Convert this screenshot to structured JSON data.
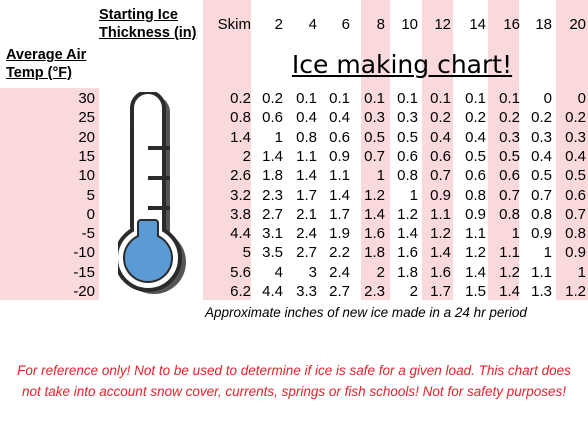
{
  "header": {
    "thickness_label": "Starting Ice Thickness (in)",
    "air_temp_label": "Average Air Temp (°F)"
  },
  "columns": [
    "Skim",
    "2",
    "4",
    "6",
    "8",
    "10",
    "12",
    "14",
    "16",
    "18",
    "20"
  ],
  "title": "Ice making chart!",
  "rows": [
    {
      "temp": "30",
      "values": [
        "0.2",
        "0.2",
        "0.1",
        "0.1",
        "0.1",
        "0.1",
        "0.1",
        "0.1",
        "0.1",
        "0",
        "0"
      ]
    },
    {
      "temp": "25",
      "values": [
        "0.8",
        "0.6",
        "0.4",
        "0.4",
        "0.3",
        "0.3",
        "0.2",
        "0.2",
        "0.2",
        "0.2",
        "0.2"
      ]
    },
    {
      "temp": "20",
      "values": [
        "1.4",
        "1",
        "0.8",
        "0.6",
        "0.5",
        "0.5",
        "0.4",
        "0.4",
        "0.3",
        "0.3",
        "0.3"
      ]
    },
    {
      "temp": "15",
      "values": [
        "2",
        "1.4",
        "1.1",
        "0.9",
        "0.7",
        "0.6",
        "0.6",
        "0.5",
        "0.5",
        "0.4",
        "0.4"
      ]
    },
    {
      "temp": "10",
      "values": [
        "2.6",
        "1.8",
        "1.4",
        "1.1",
        "1",
        "0.8",
        "0.7",
        "0.6",
        "0.6",
        "0.5",
        "0.5"
      ]
    },
    {
      "temp": "5",
      "values": [
        "3.2",
        "2.3",
        "1.7",
        "1.4",
        "1.2",
        "1",
        "0.9",
        "0.8",
        "0.7",
        "0.7",
        "0.6"
      ]
    },
    {
      "temp": "0",
      "values": [
        "3.8",
        "2.7",
        "2.1",
        "1.7",
        "1.4",
        "1.2",
        "1.1",
        "0.9",
        "0.8",
        "0.8",
        "0.7"
      ]
    },
    {
      "temp": "-5",
      "values": [
        "4.4",
        "3.1",
        "2.4",
        "1.9",
        "1.6",
        "1.4",
        "1.2",
        "1.1",
        "1",
        "0.9",
        "0.8"
      ]
    },
    {
      "temp": "-10",
      "values": [
        "5",
        "3.5",
        "2.7",
        "2.2",
        "1.8",
        "1.6",
        "1.4",
        "1.2",
        "1.1",
        "1",
        "0.9"
      ]
    },
    {
      "temp": "-15",
      "values": [
        "5.6",
        "4",
        "3",
        "2.4",
        "2",
        "1.8",
        "1.6",
        "1.4",
        "1.2",
        "1.1",
        "1"
      ]
    },
    {
      "temp": "-20",
      "values": [
        "6.2",
        "4.4",
        "3.3",
        "2.7",
        "2.3",
        "2",
        "1.7",
        "1.5",
        "1.4",
        "1.3",
        "1.2"
      ]
    }
  ],
  "note": "Approximate inches of new ice made in a 24 hr period",
  "disclaimer": "For reference only! Not to be used to determine if ice is safe for a given load. This chart does not take into account snow cover, currents, springs or fish schools! Not for safety purposes!",
  "colors": {
    "highlight": "#f9d9db",
    "disclaimer": "#e0242b",
    "thermometer_fill": "#5b9bd5"
  },
  "icons": [
    "thermometer-icon"
  ]
}
